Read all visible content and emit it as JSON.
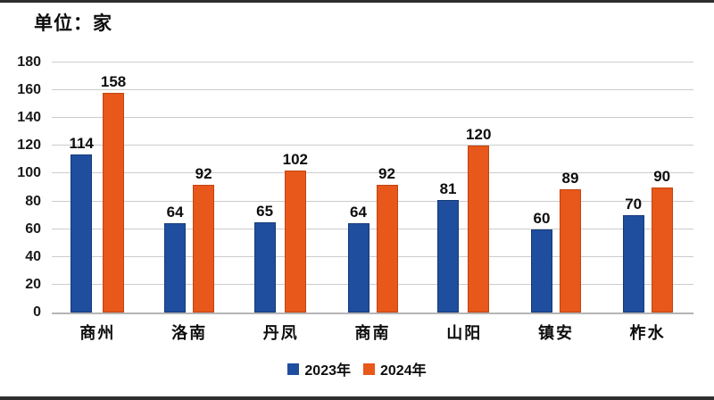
{
  "title": "单位：家",
  "chart_data": {
    "type": "bar",
    "title": "单位：家",
    "categories": [
      "商州",
      "洛南",
      "丹凤",
      "商南",
      "山阳",
      "镇安",
      "柞水"
    ],
    "series": [
      {
        "name": "2023年",
        "color": "#1f4e9f",
        "border": "#163a78",
        "values": [
          114,
          64,
          65,
          64,
          81,
          60,
          70
        ]
      },
      {
        "name": "2024年",
        "color": "#e8581b",
        "border": "#c24410",
        "values": [
          158,
          92,
          102,
          92,
          120,
          89,
          90
        ]
      }
    ],
    "xlabel": "",
    "ylabel": "",
    "ylim": [
      0,
      180
    ],
    "yticks": [
      0,
      20,
      40,
      60,
      80,
      100,
      120,
      140,
      160,
      180
    ],
    "grid": true,
    "legend_position": "bottom"
  },
  "colors": {
    "background": "#ffffff",
    "gridline": "#cccccc",
    "axis_line": "#b5b5b5",
    "text": "#0d0d0d",
    "frame_edge": "#2e2e2e"
  }
}
